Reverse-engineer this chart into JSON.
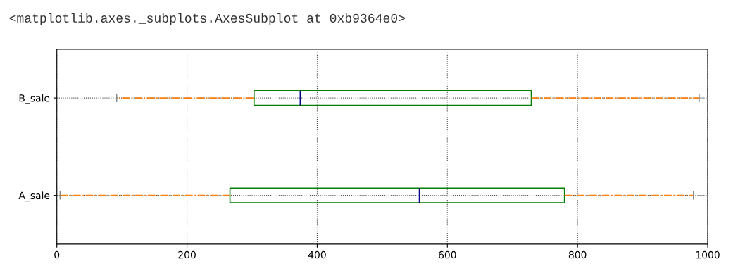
{
  "chart_data": {
    "type": "box",
    "orientation": "horizontal",
    "annotations": [
      "<matplotlib.axes._subplots.AxesSubplot at 0xb9364e0>"
    ],
    "categories": [
      "B_sale",
      "A_sale"
    ],
    "boxes": [
      {
        "low": 92,
        "q1": 303,
        "median": 374,
        "q3": 729,
        "high": 987
      },
      {
        "low": 5,
        "q1": 266,
        "median": 557,
        "q3": 780,
        "high": 978
      }
    ],
    "color": "#008000",
    "xlim": [
      0,
      1000
    ],
    "xticks": [
      0,
      200,
      400,
      600,
      800,
      1000
    ],
    "grid": true
  }
}
